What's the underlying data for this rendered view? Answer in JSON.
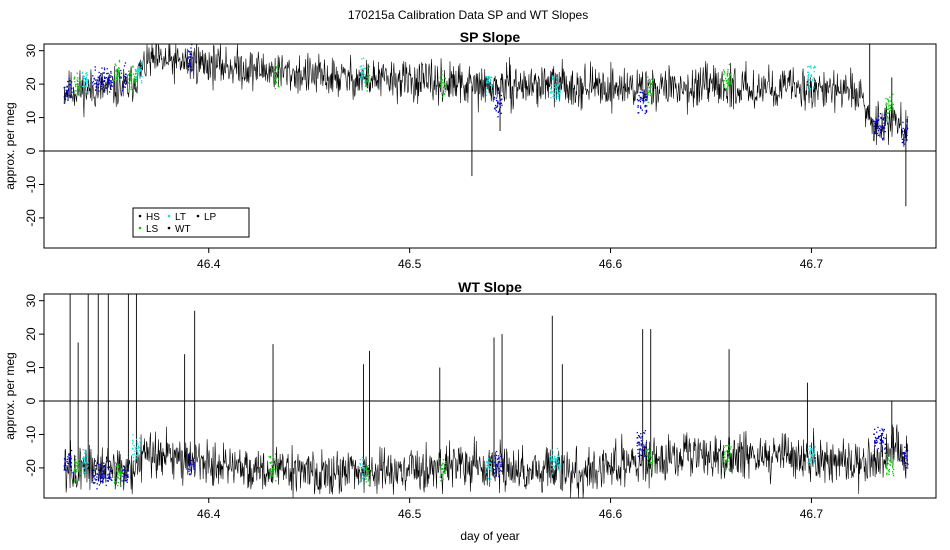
{
  "figure": {
    "title": "170215a   Calibration Data SP and WT Slopes",
    "xlabel": "day of year"
  },
  "colors": {
    "HS": "#000000",
    "LS": "#00cc00",
    "LT": "#00e5e5",
    "WT": "#000000",
    "LP": "#0000cc",
    "trace": "#000000",
    "axis": "#000000",
    "zeroline": "#000000"
  },
  "legend": {
    "location": "bottom-left of SP panel",
    "entries": [
      {
        "key": "HS",
        "label": "HS"
      },
      {
        "key": "LS",
        "label": "LS"
      },
      {
        "key": "LT",
        "label": "LT"
      },
      {
        "key": "WT",
        "label": "WT"
      },
      {
        "key": "LP",
        "label": "LP"
      }
    ]
  },
  "chart_data": [
    {
      "type": "line",
      "title": "SP Slope",
      "xlabel": "",
      "ylabel": "approx. per meg",
      "xlim": [
        46.318,
        46.762
      ],
      "ylim": [
        -29,
        32
      ],
      "xticks": [
        46.4,
        46.5,
        46.6,
        46.7
      ],
      "xticklabels": [
        "46.4",
        "46.5",
        "46.6",
        "46.7"
      ],
      "yticks": [
        -20,
        -10,
        0,
        10,
        20,
        30
      ],
      "yticklabels": [
        "-20",
        "-10",
        "0",
        "10",
        "20",
        "30"
      ],
      "hline": 0,
      "x_range": [
        46.328,
        46.748
      ],
      "noise_amplitude": 3,
      "trend": [
        {
          "x": 46.328,
          "y": 18
        },
        {
          "x": 46.36,
          "y": 19
        },
        {
          "x": 46.37,
          "y": 27
        },
        {
          "x": 46.4,
          "y": 26
        },
        {
          "x": 46.43,
          "y": 24
        },
        {
          "x": 46.46,
          "y": 22
        },
        {
          "x": 46.5,
          "y": 21
        },
        {
          "x": 46.54,
          "y": 19
        },
        {
          "x": 46.57,
          "y": 20
        },
        {
          "x": 46.6,
          "y": 19
        },
        {
          "x": 46.66,
          "y": 19
        },
        {
          "x": 46.7,
          "y": 19
        },
        {
          "x": 46.725,
          "y": 17
        },
        {
          "x": 46.73,
          "y": 8
        },
        {
          "x": 46.74,
          "y": 10
        },
        {
          "x": 46.748,
          "y": 6
        }
      ],
      "spikes": [
        {
          "x": 46.531,
          "y": -7.5
        },
        {
          "x": 46.545,
          "y": 6
        },
        {
          "x": 46.729,
          "y": 33
        },
        {
          "x": 46.74,
          "y": 22
        },
        {
          "x": 46.747,
          "y": -16.5
        },
        {
          "x": 46.394,
          "y": 32
        }
      ],
      "calibration_segments": [
        {
          "key": "LP",
          "x_start": 46.328,
          "x_end": 46.332,
          "y": 18
        },
        {
          "key": "LS",
          "x_start": 46.333,
          "x_end": 46.336,
          "y": 20
        },
        {
          "key": "LT",
          "x_start": 46.337,
          "x_end": 46.34,
          "y": 21
        },
        {
          "key": "LP",
          "x_start": 46.342,
          "x_end": 46.352,
          "y": 21
        },
        {
          "key": "LS",
          "x_start": 46.353,
          "x_end": 46.356,
          "y": 23
        },
        {
          "key": "LP",
          "x_start": 46.356,
          "x_end": 46.359,
          "y": 22
        },
        {
          "key": "LS",
          "x_start": 46.36,
          "x_end": 46.364,
          "y": 22
        },
        {
          "key": "LT",
          "x_start": 46.364,
          "x_end": 46.367,
          "y": 24
        },
        {
          "key": "LP",
          "x_start": 46.389,
          "x_end": 46.392,
          "y": 28
        },
        {
          "key": "LS",
          "x_start": 46.432,
          "x_end": 46.435,
          "y": 22
        },
        {
          "key": "LT",
          "x_start": 46.475,
          "x_end": 46.478,
          "y": 24
        },
        {
          "key": "LS",
          "x_start": 46.478,
          "x_end": 46.48,
          "y": 22
        },
        {
          "key": "LS",
          "x_start": 46.515,
          "x_end": 46.518,
          "y": 20
        },
        {
          "key": "LT",
          "x_start": 46.538,
          "x_end": 46.541,
          "y": 20
        },
        {
          "key": "LP",
          "x_start": 46.542,
          "x_end": 46.546,
          "y": 14
        },
        {
          "key": "LT",
          "x_start": 46.57,
          "x_end": 46.575,
          "y": 19
        },
        {
          "key": "LP",
          "x_start": 46.613,
          "x_end": 46.618,
          "y": 15
        },
        {
          "key": "LS",
          "x_start": 46.618,
          "x_end": 46.621,
          "y": 19
        },
        {
          "key": "LS",
          "x_start": 46.656,
          "x_end": 46.66,
          "y": 22
        },
        {
          "key": "LT",
          "x_start": 46.698,
          "x_end": 46.702,
          "y": 22
        },
        {
          "key": "LP",
          "x_start": 46.731,
          "x_end": 46.737,
          "y": 7
        },
        {
          "key": "LS",
          "x_start": 46.737,
          "x_end": 46.741,
          "y": 13
        },
        {
          "key": "LP",
          "x_start": 46.745,
          "x_end": 46.748,
          "y": 6
        }
      ]
    },
    {
      "type": "line",
      "title": "WT Slope",
      "xlabel": "day of year",
      "ylabel": "approx. per meg",
      "xlim": [
        46.318,
        46.762
      ],
      "ylim": [
        -29,
        32
      ],
      "xticks": [
        46.4,
        46.5,
        46.6,
        46.7
      ],
      "xticklabels": [
        "46.4",
        "46.5",
        "46.6",
        "46.7"
      ],
      "yticks": [
        -20,
        -10,
        0,
        10,
        20,
        30
      ],
      "yticklabels": [
        "-20",
        "-10",
        "0",
        "10",
        "20",
        "30"
      ],
      "hline": 0,
      "x_range": [
        46.328,
        46.748
      ],
      "noise_amplitude": 3.5,
      "trend": [
        {
          "x": 46.328,
          "y": -20
        },
        {
          "x": 46.36,
          "y": -21
        },
        {
          "x": 46.37,
          "y": -15
        },
        {
          "x": 46.39,
          "y": -17
        },
        {
          "x": 46.42,
          "y": -20
        },
        {
          "x": 46.46,
          "y": -22
        },
        {
          "x": 46.5,
          "y": -21
        },
        {
          "x": 46.52,
          "y": -19
        },
        {
          "x": 46.55,
          "y": -20
        },
        {
          "x": 46.58,
          "y": -22
        },
        {
          "x": 46.61,
          "y": -18
        },
        {
          "x": 46.65,
          "y": -17
        },
        {
          "x": 46.7,
          "y": -17
        },
        {
          "x": 46.73,
          "y": -19
        },
        {
          "x": 46.74,
          "y": -14
        },
        {
          "x": 46.748,
          "y": -17
        }
      ],
      "spikes": [
        {
          "x": 46.331,
          "y": 33
        },
        {
          "x": 46.335,
          "y": 17.5
        },
        {
          "x": 46.34,
          "y": 33
        },
        {
          "x": 46.345,
          "y": 33
        },
        {
          "x": 46.35,
          "y": 33
        },
        {
          "x": 46.36,
          "y": 33
        },
        {
          "x": 46.364,
          "y": 33
        },
        {
          "x": 46.388,
          "y": 14
        },
        {
          "x": 46.393,
          "y": 27
        },
        {
          "x": 46.432,
          "y": 17
        },
        {
          "x": 46.477,
          "y": 11
        },
        {
          "x": 46.48,
          "y": 15
        },
        {
          "x": 46.515,
          "y": 10
        },
        {
          "x": 46.542,
          "y": 19
        },
        {
          "x": 46.546,
          "y": 20
        },
        {
          "x": 46.571,
          "y": 25.5
        },
        {
          "x": 46.576,
          "y": 11
        },
        {
          "x": 46.616,
          "y": 21.5
        },
        {
          "x": 46.62,
          "y": 21.5
        },
        {
          "x": 46.659,
          "y": 15.5
        },
        {
          "x": 46.698,
          "y": 5.5
        },
        {
          "x": 46.74,
          "y": 0
        }
      ],
      "calibration_segments": [
        {
          "key": "LP",
          "x_start": 46.328,
          "x_end": 46.332,
          "y": -19
        },
        {
          "key": "LS",
          "x_start": 46.333,
          "x_end": 46.336,
          "y": -20
        },
        {
          "key": "LT",
          "x_start": 46.337,
          "x_end": 46.34,
          "y": -18
        },
        {
          "key": "LP",
          "x_start": 46.342,
          "x_end": 46.352,
          "y": -22
        },
        {
          "key": "LS",
          "x_start": 46.353,
          "x_end": 46.357,
          "y": -22
        },
        {
          "key": "LP",
          "x_start": 46.357,
          "x_end": 46.36,
          "y": -22
        },
        {
          "key": "LT",
          "x_start": 46.362,
          "x_end": 46.366,
          "y": -14
        },
        {
          "key": "LP",
          "x_start": 46.39,
          "x_end": 46.393,
          "y": -19
        },
        {
          "key": "LS",
          "x_start": 46.43,
          "x_end": 46.434,
          "y": -20
        },
        {
          "key": "LT",
          "x_start": 46.475,
          "x_end": 46.478,
          "y": -21
        },
        {
          "key": "LS",
          "x_start": 46.478,
          "x_end": 46.48,
          "y": -22
        },
        {
          "key": "LS",
          "x_start": 46.515,
          "x_end": 46.518,
          "y": -20
        },
        {
          "key": "LT",
          "x_start": 46.538,
          "x_end": 46.541,
          "y": -20
        },
        {
          "key": "LP",
          "x_start": 46.542,
          "x_end": 46.546,
          "y": -19
        },
        {
          "key": "LT",
          "x_start": 46.57,
          "x_end": 46.575,
          "y": -18
        },
        {
          "key": "LP",
          "x_start": 46.613,
          "x_end": 46.618,
          "y": -13
        },
        {
          "key": "LS",
          "x_start": 46.618,
          "x_end": 46.621,
          "y": -18
        },
        {
          "key": "LS",
          "x_start": 46.656,
          "x_end": 46.66,
          "y": -17
        },
        {
          "key": "LT",
          "x_start": 46.698,
          "x_end": 46.702,
          "y": -16
        },
        {
          "key": "LP",
          "x_start": 46.731,
          "x_end": 46.737,
          "y": -12
        },
        {
          "key": "LS",
          "x_start": 46.737,
          "x_end": 46.741,
          "y": -19
        },
        {
          "key": "LP",
          "x_start": 46.745,
          "x_end": 46.748,
          "y": -17
        }
      ]
    }
  ]
}
